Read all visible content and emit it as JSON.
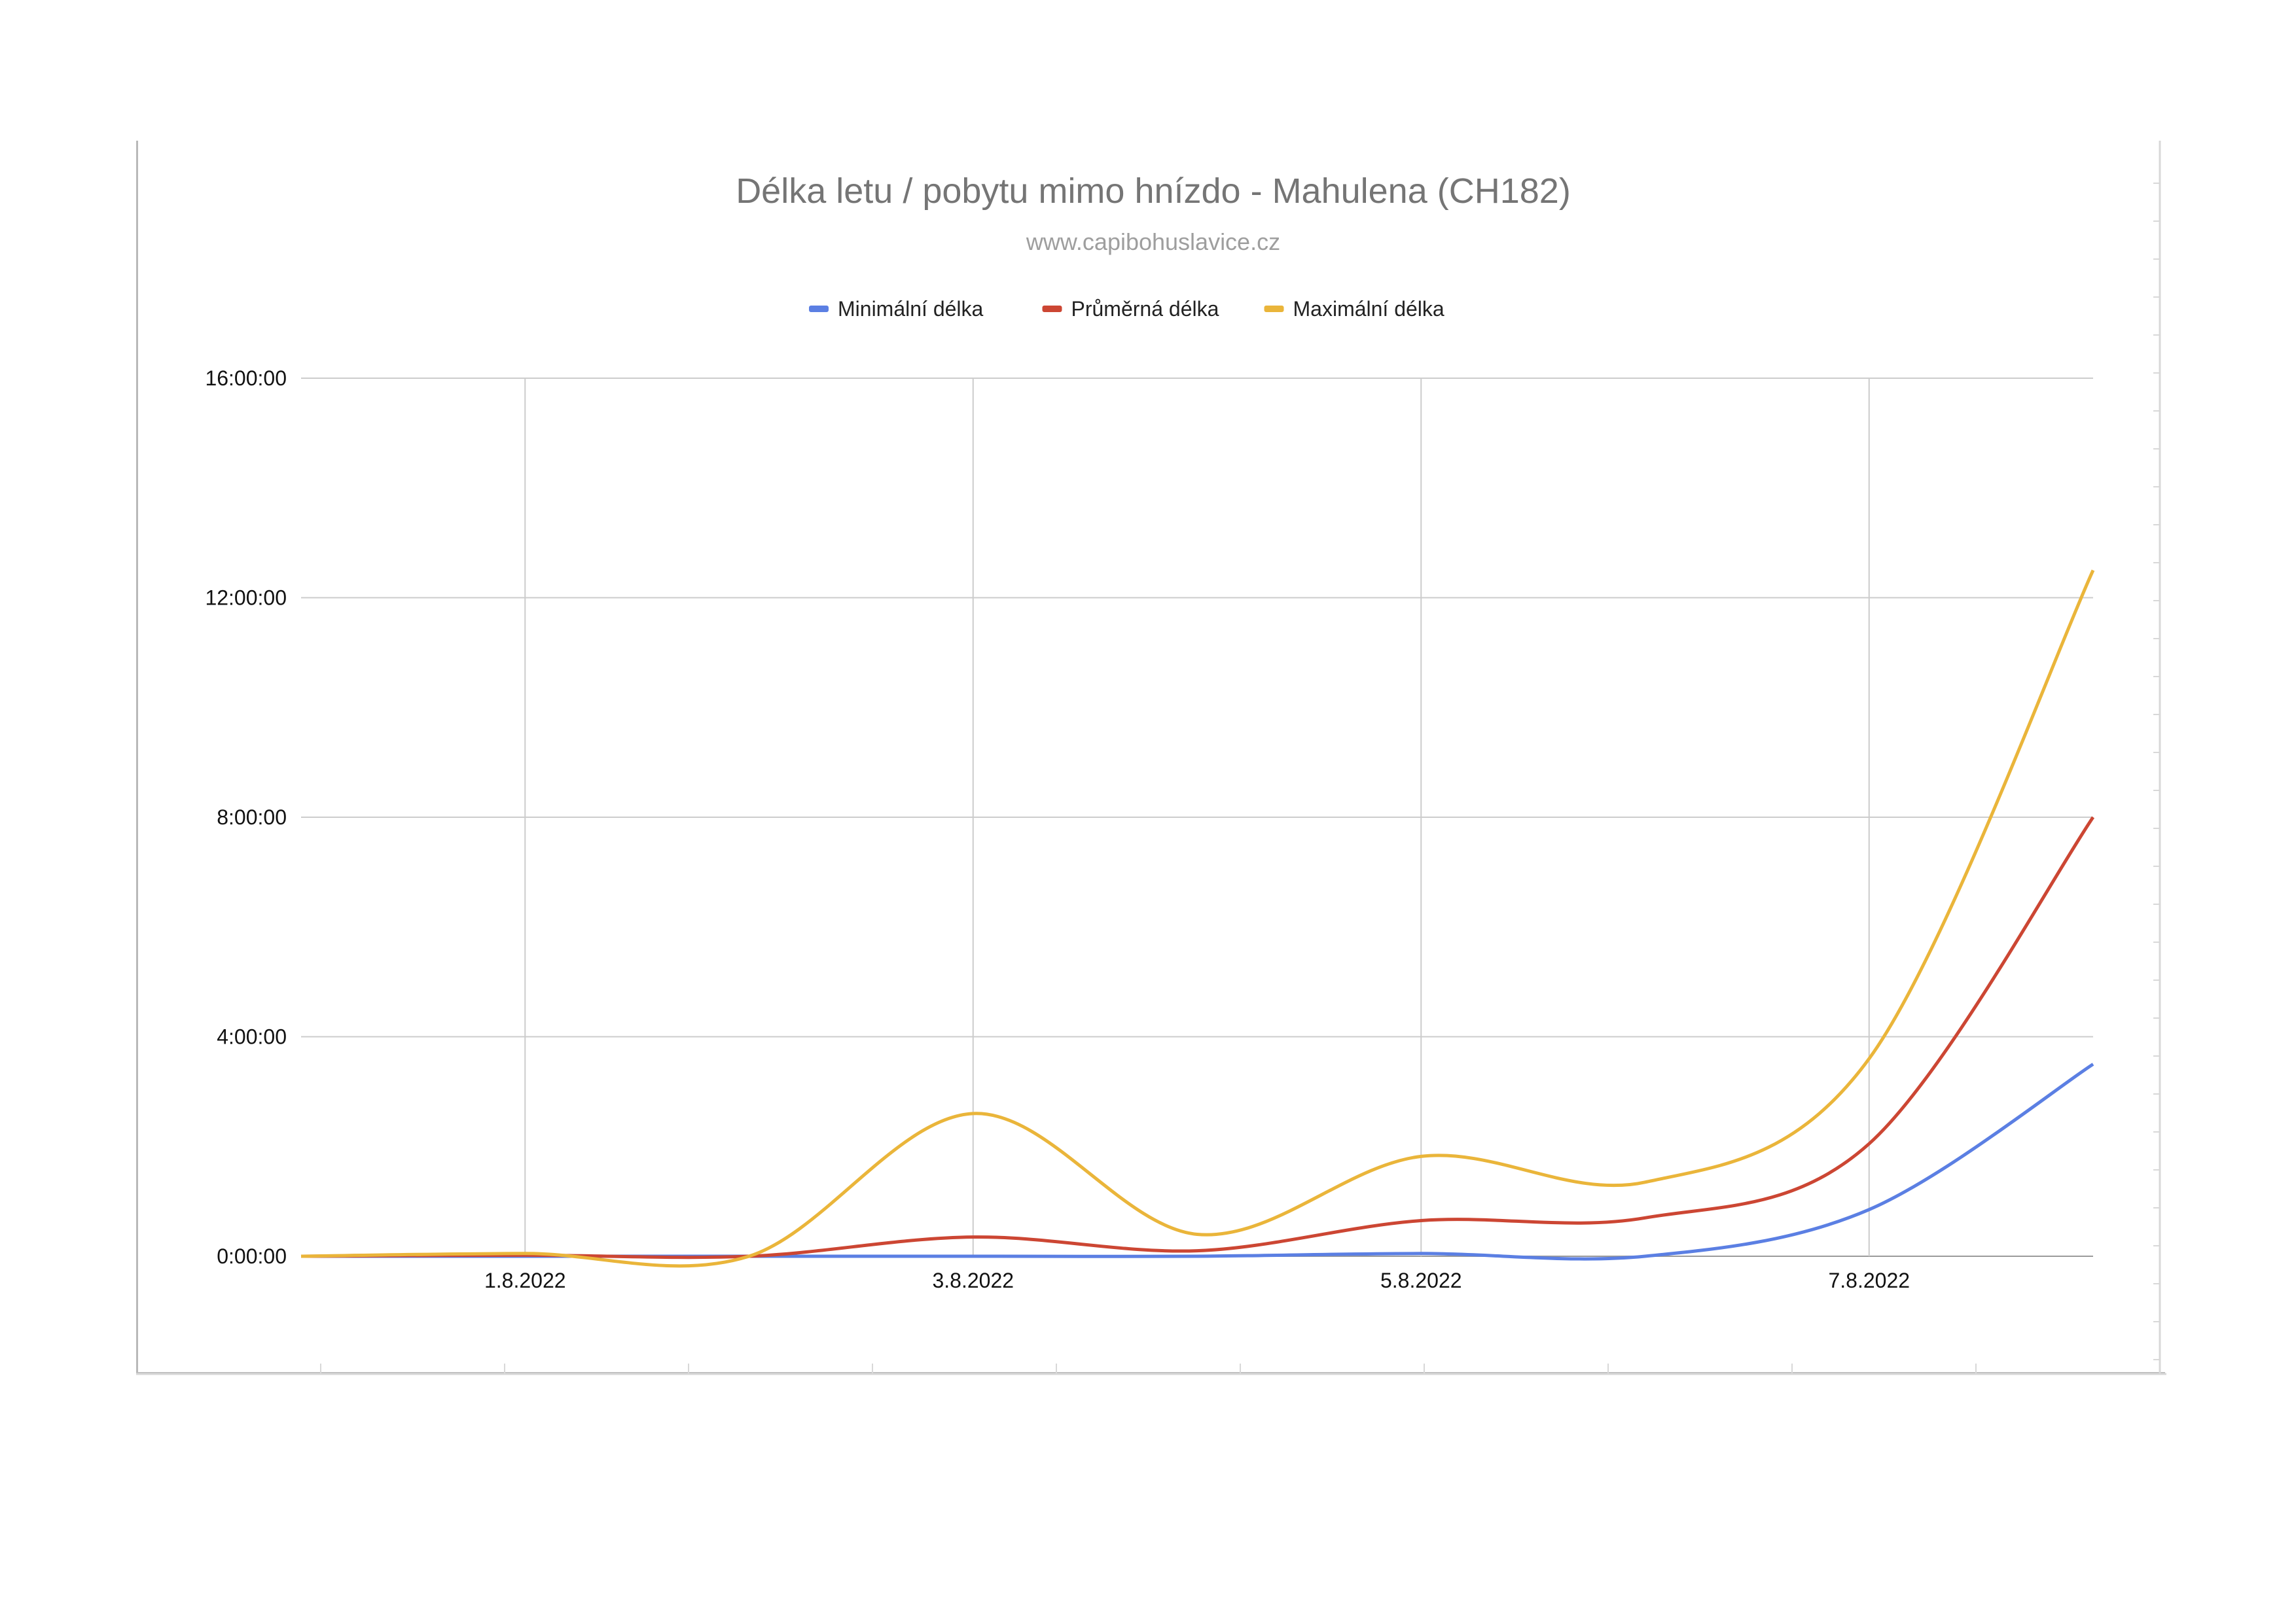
{
  "chart_data": {
    "type": "line",
    "title": "Délka letu / pobytu mimo hnízdo - Mahulena (CH182)",
    "subtitle": "www.capibohuslavice.cz",
    "x_tick_labels": [
      "1.8.2022",
      "3.8.2022",
      "5.8.2022",
      "7.8.2022"
    ],
    "y_tick_labels": [
      "0:00:00",
      "4:00:00",
      "8:00:00",
      "12:00:00",
      "16:00:00"
    ],
    "y_unit": "hours",
    "ylim": [
      0,
      16
    ],
    "x": [
      "31.7.2022",
      "1.8.2022",
      "2.8.2022",
      "3.8.2022",
      "4.8.2022",
      "5.8.2022",
      "6.8.2022",
      "7.8.2022",
      "8.8.2022"
    ],
    "series": [
      {
        "name": "Minimální délka",
        "color": "#5b7fe3",
        "values": [
          0,
          0,
          0,
          0,
          0,
          0.05,
          0,
          0.85,
          3.5
        ]
      },
      {
        "name": "Průměrná délka",
        "color": "#cc4633",
        "values": [
          0,
          0.02,
          0,
          0.35,
          0.1,
          0.65,
          0.7,
          2.05,
          8.0
        ]
      },
      {
        "name": "Maximální délka",
        "color": "#eab53a",
        "values": [
          0,
          0.05,
          0,
          2.6,
          0.4,
          1.82,
          1.35,
          3.6,
          12.5
        ]
      }
    ],
    "legend_position": "top",
    "grid": true
  }
}
